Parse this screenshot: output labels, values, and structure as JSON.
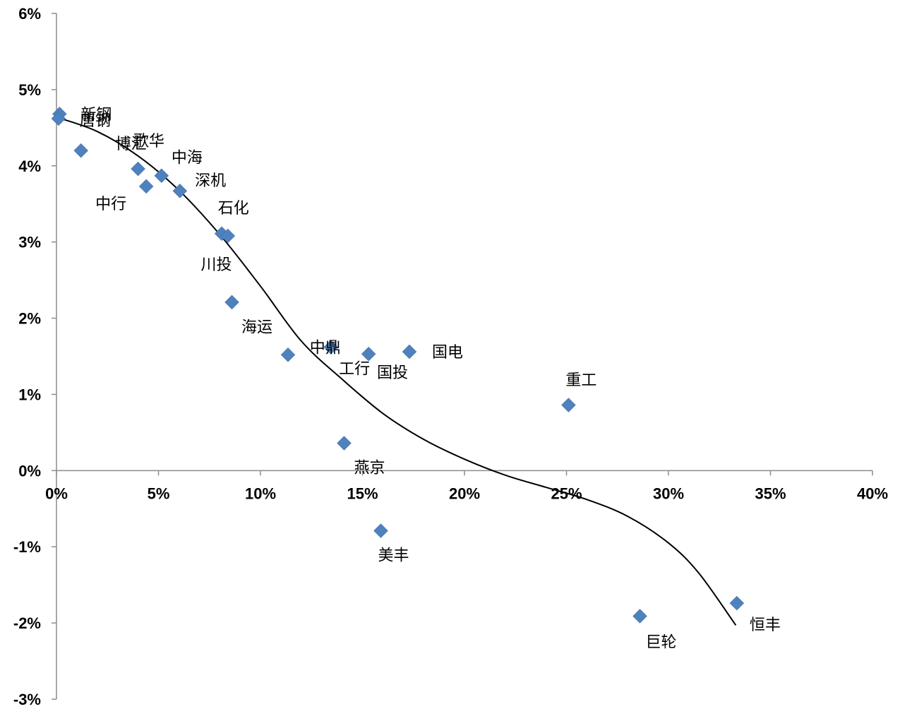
{
  "chart_data": {
    "type": "scatter",
    "title": "",
    "xlabel": "",
    "ylabel": "",
    "xlim": [
      0,
      40
    ],
    "ylim": [
      -3,
      6
    ],
    "x_ticks": [
      {
        "value": 0,
        "label": "0%"
      },
      {
        "value": 5,
        "label": "5%"
      },
      {
        "value": 10,
        "label": "10%"
      },
      {
        "value": 15,
        "label": "15%"
      },
      {
        "value": 20,
        "label": "20%"
      },
      {
        "value": 25,
        "label": "25%"
      },
      {
        "value": 30,
        "label": "30%"
      },
      {
        "value": 35,
        "label": "35%"
      },
      {
        "value": 40,
        "label": "40%"
      }
    ],
    "y_ticks": [
      {
        "value": 6,
        "label": "6%"
      },
      {
        "value": 5,
        "label": "5%"
      },
      {
        "value": 4,
        "label": "4%"
      },
      {
        "value": 3,
        "label": "3%"
      },
      {
        "value": 2,
        "label": "2%"
      },
      {
        "value": 1,
        "label": "1%"
      },
      {
        "value": 0,
        "label": "0%"
      },
      {
        "value": -1,
        "label": "-1%"
      },
      {
        "value": -2,
        "label": "-2%"
      },
      {
        "value": -3,
        "label": "-3%"
      }
    ],
    "grid": false,
    "legend": "none",
    "marker_color": "#4f81bd",
    "trendline": {
      "type": "polynomial",
      "points": [
        [
          0.1,
          4.63
        ],
        [
          2.0,
          4.45
        ],
        [
          4.0,
          4.13
        ],
        [
          6.0,
          3.68
        ],
        [
          8.0,
          3.1
        ],
        [
          10.0,
          2.42
        ],
        [
          12.0,
          1.7
        ],
        [
          14.0,
          1.2
        ],
        [
          16.0,
          0.75
        ],
        [
          18.0,
          0.41
        ],
        [
          20.0,
          0.15
        ],
        [
          22.0,
          -0.06
        ],
        [
          24.0,
          -0.22
        ],
        [
          26.0,
          -0.38
        ],
        [
          28.0,
          -0.6
        ],
        [
          30.0,
          -0.95
        ],
        [
          31.5,
          -1.35
        ],
        [
          33.3,
          -2.03
        ]
      ]
    },
    "points": [
      {
        "x": 0.15,
        "y": 4.68,
        "label": "新钢",
        "label_dx": 30,
        "label_dy": 0
      },
      {
        "x": 0.1,
        "y": 4.62,
        "label": "唐钢",
        "label_dx": 30,
        "label_dy": 2
      },
      {
        "x": 1.2,
        "y": 4.2,
        "label": "",
        "label_dx": 0,
        "label_dy": 0
      },
      {
        "x": 4.0,
        "y": 3.96,
        "label": "博汇",
        "label_dx": -32,
        "label_dy": -36
      },
      {
        "x": 4.4,
        "y": 3.73,
        "label": "中行",
        "label_dx": -72,
        "label_dy": 24
      },
      {
        "x": 5.15,
        "y": 3.87,
        "label": "歌华",
        "label_dx": -40,
        "label_dy": -50
      },
      {
        "x": 6.05,
        "y": 3.67,
        "label": "中海",
        "label_dx": -12,
        "label_dy": -48
      },
      {
        "x": 8.1,
        "y": 3.11,
        "label": "深机",
        "label_dx": -38,
        "label_dy": -76
      },
      {
        "x": 8.4,
        "y": 3.08,
        "label": "石化",
        "label_dx": -14,
        "label_dy": -40
      },
      {
        "x": 8.6,
        "y": 2.21,
        "label": "川投",
        "label_dx": -44,
        "label_dy": -54
      },
      {
        "x": 11.35,
        "y": 1.52,
        "label": "海运",
        "label_dx": -66,
        "label_dy": -40
      },
      {
        "x": 13.45,
        "y": 1.62,
        "label": "中鼎",
        "label_dx": -30,
        "label_dy": 0
      },
      {
        "x": 15.3,
        "y": 1.53,
        "label": "工行",
        "label_dx": -42,
        "label_dy": 20
      },
      {
        "x": 17.3,
        "y": 1.56,
        "label": "国投",
        "label_dx": -46,
        "label_dy": 29
      },
      {
        "x": 17.3,
        "y": 1.56,
        "label": "国电",
        "label_dx": 32,
        "label_dy": 0
      },
      {
        "x": 25.1,
        "y": 0.86,
        "label": "重工",
        "label_dx": -4,
        "label_dy": -36
      },
      {
        "x": 14.1,
        "y": 0.36,
        "label": "燕京",
        "label_dx": 14,
        "label_dy": 34
      },
      {
        "x": 15.9,
        "y": -0.79,
        "label": "美丰",
        "label_dx": -4,
        "label_dy": 34
      },
      {
        "x": 28.6,
        "y": -1.91,
        "label": "巨轮",
        "label_dx": 8,
        "label_dy": 36
      },
      {
        "x": 33.35,
        "y": -1.74,
        "label": "恒丰",
        "label_dx": 18,
        "label_dy": 30
      }
    ]
  }
}
